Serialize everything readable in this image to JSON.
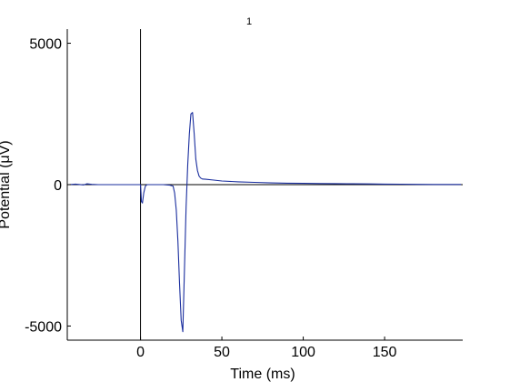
{
  "chart_data": {
    "type": "line",
    "title": "1",
    "xlabel": "Time (ms)",
    "ylabel": "Potential (μV)",
    "xlim": [
      -45,
      198
    ],
    "ylim": [
      -5500,
      5500
    ],
    "xticks": [
      0,
      50,
      100,
      150
    ],
    "xtick_labels": [
      "0",
      "50",
      "100",
      "150"
    ],
    "yticks": [
      -5000,
      0,
      5000
    ],
    "ytick_labels": [
      "-5000",
      "0",
      "5000"
    ],
    "grid": false,
    "reference_lines": {
      "zero_x": 0,
      "zero_y": 0
    },
    "colors": {
      "trace": "#1a2e9e",
      "axes": "#000000"
    },
    "series": [
      {
        "x": [
          -44,
          -40,
          -35,
          -33,
          -30,
          -26,
          -22,
          -18,
          -14,
          -10,
          -6,
          -3,
          -1,
          0,
          0.6,
          1.2,
          2,
          3,
          4,
          6,
          10,
          14,
          18,
          20,
          21,
          22,
          23,
          24,
          25,
          26,
          27,
          28,
          29,
          30,
          31,
          32,
          33,
          34,
          35,
          36,
          37,
          38,
          40,
          45,
          50,
          60,
          70,
          80,
          90,
          100,
          110,
          120,
          130,
          140,
          150,
          160,
          170,
          180,
          190,
          197
        ],
        "y": [
          0,
          20,
          -10,
          30,
          10,
          0,
          0,
          0,
          0,
          0,
          0,
          0,
          0,
          0,
          -600,
          -650,
          -300,
          -50,
          0,
          0,
          0,
          0,
          -20,
          -50,
          -300,
          -900,
          -2000,
          -3500,
          -4800,
          -5200,
          -3000,
          -800,
          700,
          1800,
          2500,
          2550,
          1800,
          900,
          500,
          300,
          230,
          200,
          190,
          160,
          130,
          100,
          80,
          60,
          50,
          45,
          40,
          35,
          30,
          25,
          20,
          15,
          10,
          8,
          5,
          5
        ]
      }
    ]
  }
}
